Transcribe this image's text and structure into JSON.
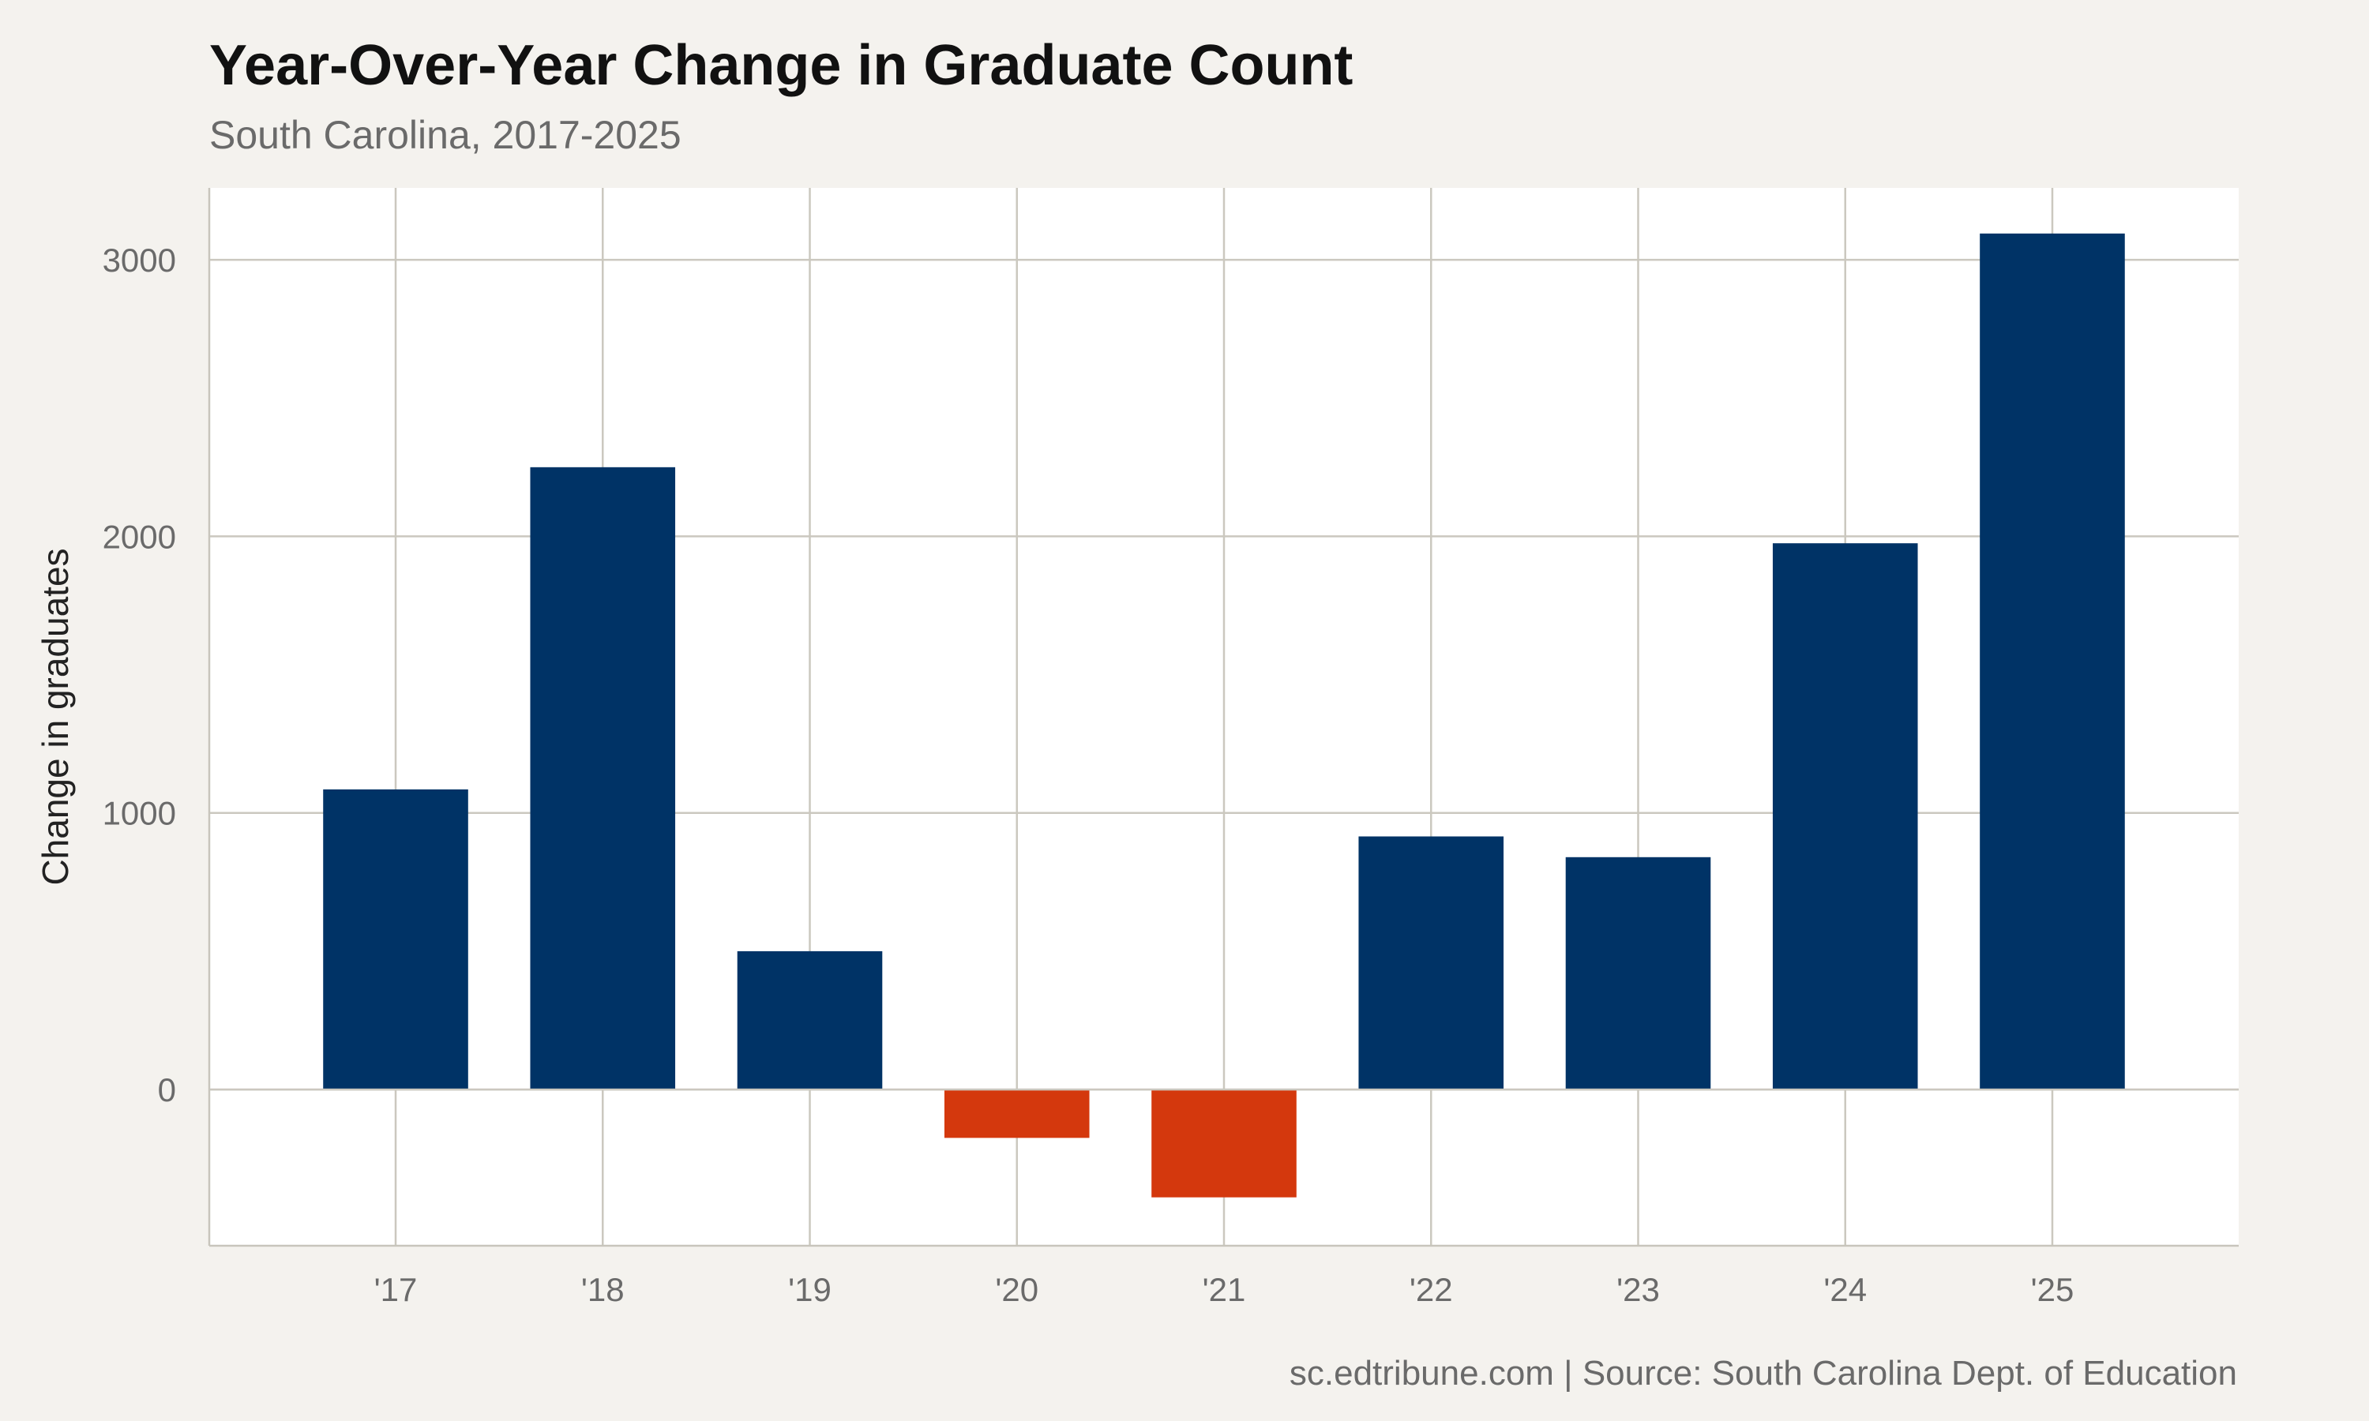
{
  "chart_data": {
    "type": "bar",
    "title": "Year-Over-Year Change in Graduate Count",
    "subtitle": "South Carolina, 2017-2025",
    "xlabel": "",
    "ylabel": "Change in graduates",
    "categories": [
      "'17",
      "'18",
      "'19",
      "'20",
      "'21",
      "'22",
      "'23",
      "'24",
      "'25"
    ],
    "values": [
      1085,
      2250,
      500,
      -175,
      -390,
      915,
      840,
      1975,
      3095
    ],
    "ylim": [
      -565,
      3260
    ],
    "yticks": [
      0,
      1000,
      2000,
      3000
    ],
    "grid": true,
    "legend": "none",
    "colors": {
      "positive": "#003366",
      "negative": "#d4380d"
    },
    "caption": "sc.edtribune.com | Source: South Carolina Dept. of Education"
  }
}
